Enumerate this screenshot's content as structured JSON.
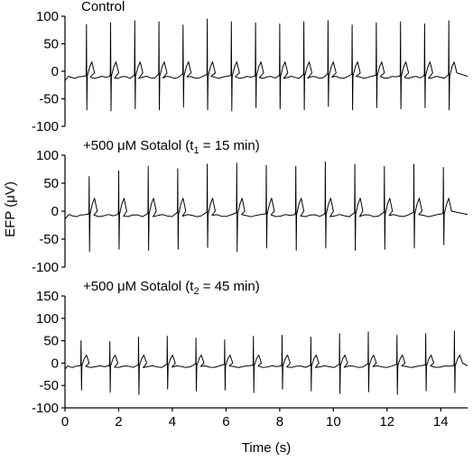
{
  "chart_data": {
    "type": "line",
    "xlabel": "Time (s)",
    "ylabel": "EFP (μV)",
    "xlim": [
      0,
      15
    ],
    "xticks": [
      "0",
      "2",
      "4",
      "6",
      "8",
      "10",
      "12",
      "14"
    ],
    "panels": [
      {
        "title": "Control",
        "title_sub": "",
        "title_tail": "",
        "ylim": [
          -100,
          100
        ],
        "yticks": [
          "100",
          "50",
          "0",
          "-50",
          "-100"
        ],
        "series": [
          {
            "beat_period_s": 0.9,
            "first_beat_s": 0.8,
            "baseline_uV": -5,
            "spike_up_uV": [
              85,
              88,
              92,
              90,
              84,
              95,
              90,
              88,
              86,
              90,
              92,
              84,
              88,
              90,
              86,
              92,
              90
            ],
            "spike_down_uV": [
              -70,
              -72,
              -68,
              -70,
              -65,
              -70,
              -72,
              -66,
              -68,
              -70,
              -64,
              -70,
              -66,
              -68,
              -66,
              -70,
              -60
            ],
            "repolarization_uV": 22
          }
        ]
      },
      {
        "title": "+500 μM Sotalol (t",
        "title_sub": "1",
        "title_tail": " = 15 min)",
        "ylim": [
          -100,
          100
        ],
        "yticks": [
          "100",
          "50",
          "0",
          "-50",
          "-100"
        ],
        "series": [
          {
            "beat_period_s": 1.1,
            "first_beat_s": 0.9,
            "baseline_uV": -2,
            "spike_up_uV": [
              62,
              72,
              80,
              76,
              84,
              86,
              82,
              80,
              88,
              84,
              80,
              84,
              78,
              86
            ],
            "spike_down_uV": [
              -72,
              -68,
              -70,
              -68,
              -65,
              -72,
              -66,
              -70,
              -66,
              -70,
              -68,
              -66,
              -60,
              -64
            ],
            "repolarization_uV": 25
          }
        ]
      },
      {
        "title": "+500 μM Sotalol (t",
        "title_sub": "2",
        "title_tail": " = 45 min)",
        "ylim": [
          -100,
          150
        ],
        "yticks": [
          "150",
          "100",
          "50",
          "0",
          "-50",
          "-100"
        ],
        "series": [
          {
            "beat_period_s": 1.07,
            "first_beat_s": 0.6,
            "baseline_uV": -2,
            "spike_up_uV": [
              50,
              48,
              58,
              60,
              56,
              52,
              60,
              62,
              58,
              66,
              70,
              62,
              66,
              72,
              60
            ],
            "spike_down_uV": [
              -60,
              -65,
              -70,
              -58,
              -62,
              -60,
              -66,
              -58,
              -62,
              -68,
              -64,
              -70,
              -62,
              -66,
              -60
            ],
            "repolarization_uV": 20
          }
        ]
      }
    ]
  }
}
